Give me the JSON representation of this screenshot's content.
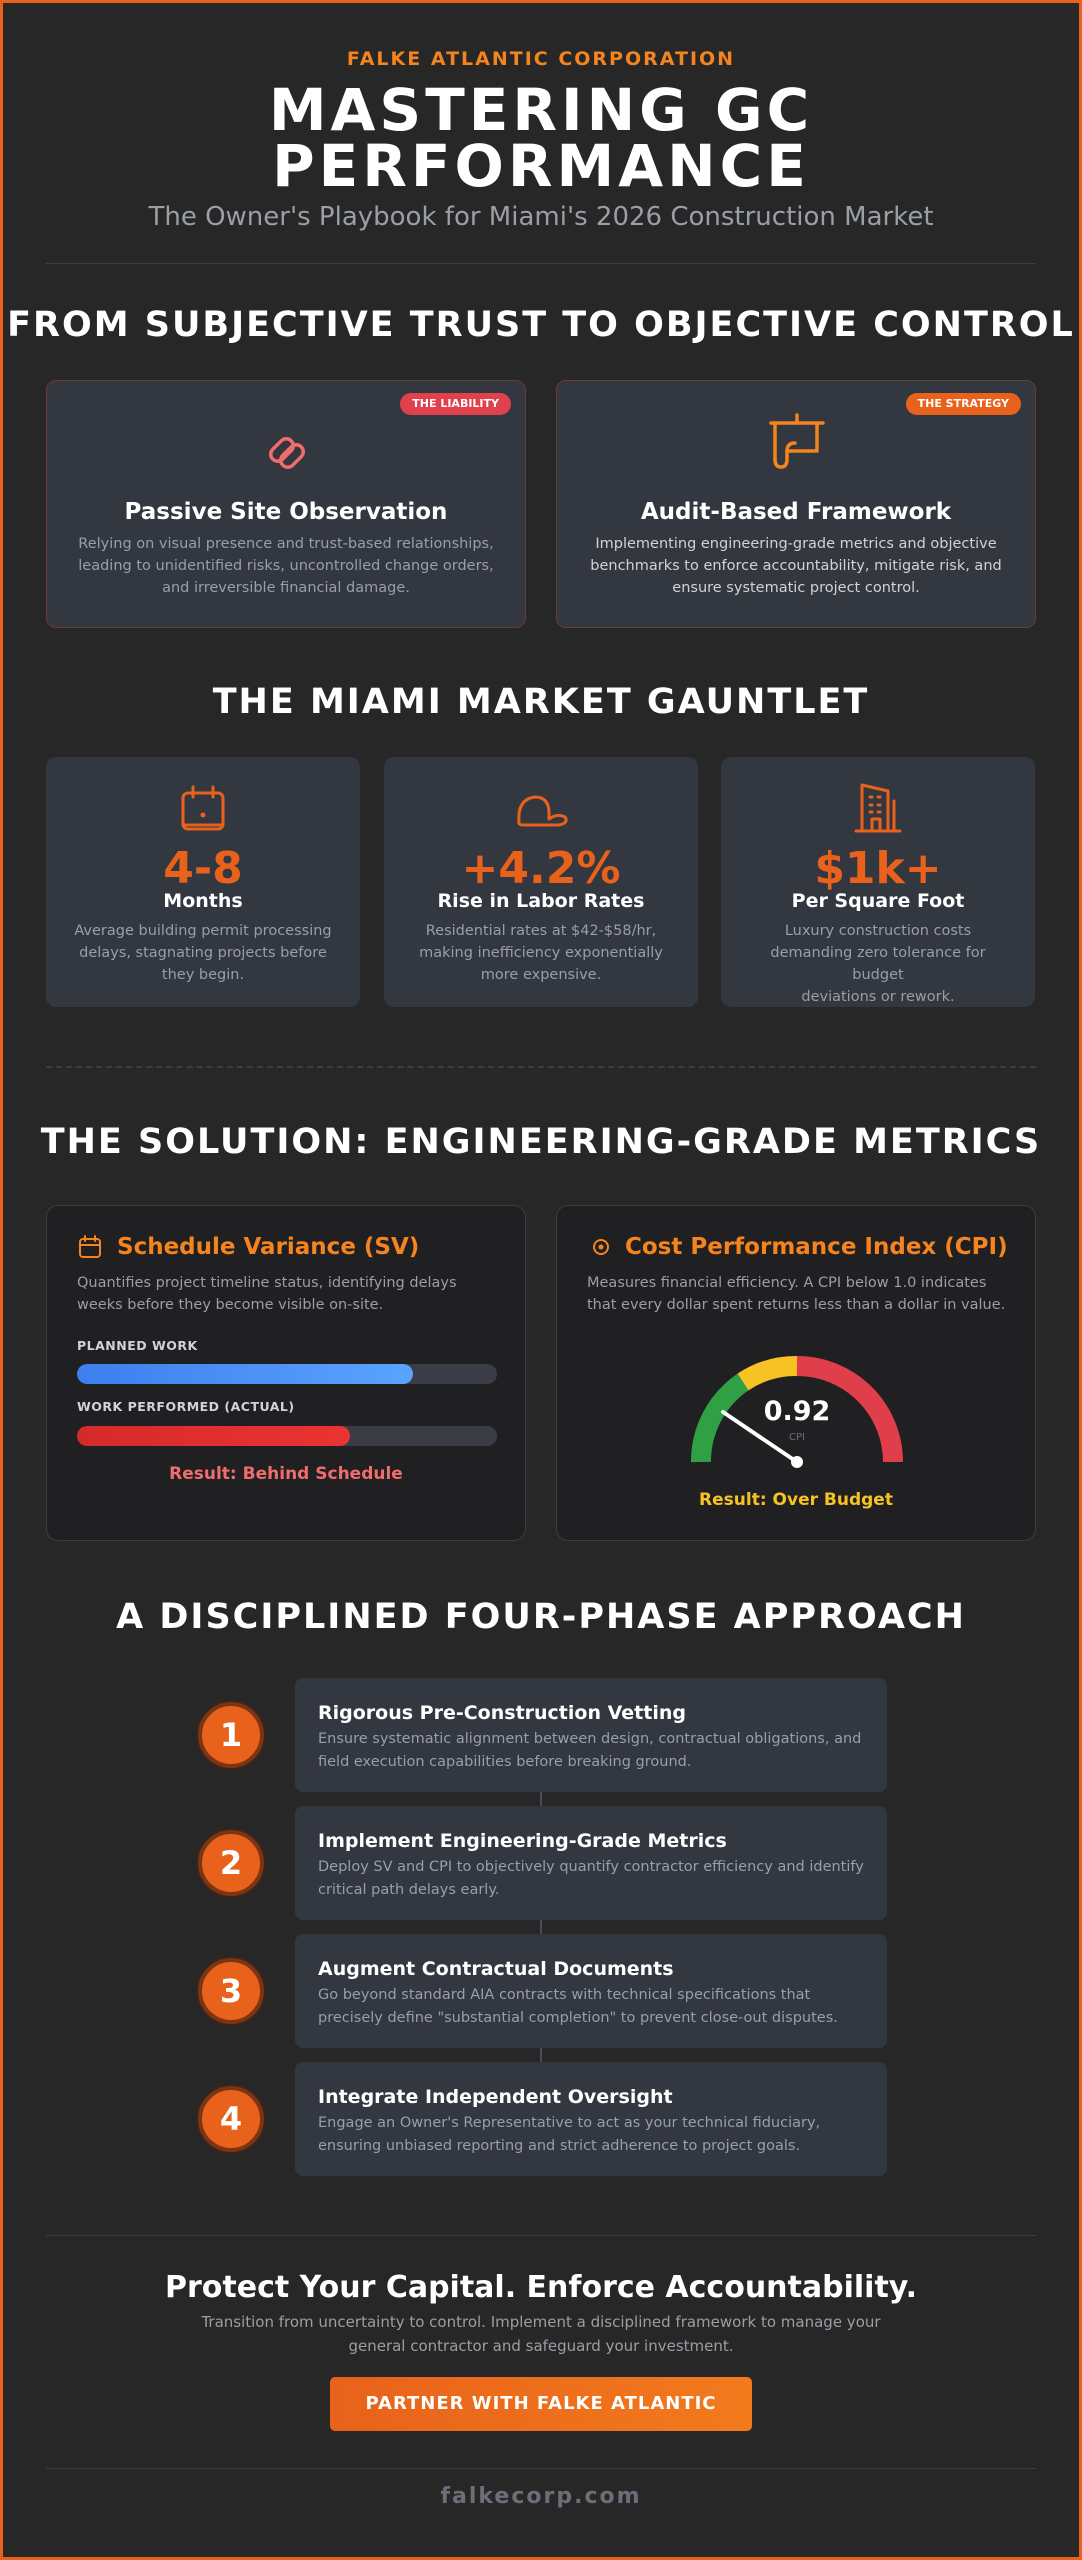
{
  "header": {
    "eyebrow": "FALKE ATLANTIC CORPORATION",
    "title_line1": "MASTERING GC",
    "title_line2": "PERFORMANCE",
    "subtitle": "The Owner's Playbook for Miami's 2026 Construction Market"
  },
  "section1": {
    "title": "FROM SUBJECTIVE TRUST TO OBJECTIVE CONTROL",
    "cards": [
      {
        "badge": "THE LIABILITY",
        "icon": "broken-link-icon",
        "title": "Passive Site Observation",
        "desc_line1": "Relying on visual presence and trust-based relationships,",
        "desc_line2": "leading to unidentified risks, uncontrolled change orders,",
        "desc_line3": "and irreversible financial damage."
      },
      {
        "badge": "THE STRATEGY",
        "icon": "blueprint-icon",
        "title": "Audit-Based Framework",
        "desc_line1": "Implementing engineering-grade metrics and objective",
        "desc_line2": "benchmarks to enforce accountability, mitigate risk, and",
        "desc_line3": "ensure systematic project control."
      }
    ]
  },
  "section2": {
    "title": "THE MIAMI MARKET GAUNTLET",
    "stats": [
      {
        "icon": "calendar-icon",
        "value": "4-8",
        "label": "Months",
        "desc_line1": "Average building permit processing",
        "desc_line2": "delays, stagnating projects before",
        "desc_line3": "they begin."
      },
      {
        "icon": "hard-hat-icon",
        "value": "+4.2%",
        "label": "Rise in Labor Rates",
        "desc_line1": "Residential rates at $42-$58/hr,",
        "desc_line2": "making inefficiency exponentially",
        "desc_line3": "more expensive."
      },
      {
        "icon": "building-icon",
        "value": "$1k+",
        "label": "Per Square Foot",
        "desc_line1": "Luxury construction costs",
        "desc_line2": "demanding zero tolerance for budget",
        "desc_line3": "deviations or rework."
      }
    ]
  },
  "section3": {
    "title": "THE SOLUTION: ENGINEERING-GRADE METRICS",
    "sv": {
      "title": "Schedule Variance (SV)",
      "desc_line1": "Quantifies project timeline status, identifying delays",
      "desc_line2": "weeks before they become visible on-site.",
      "planned_label": "PLANNED WORK",
      "planned_fraction": 0.8,
      "actual_label": "WORK PERFORMED (ACTUAL)",
      "actual_fraction": 0.65,
      "result": "Result: Behind Schedule",
      "planned_color": "#4d8ef0",
      "actual_color": "#e02b2b"
    },
    "cpi": {
      "title": "Cost Performance Index (CPI)",
      "desc_line1": "Measures financial efficiency. A CPI below 1.0 indicates",
      "desc_line2": "that every dollar spent returns less than a dollar in value.",
      "gauge_value": "0.92",
      "gauge_caption": "CPI",
      "result": "Result: Over Budget",
      "colors": {
        "green": "#2fa043",
        "yellow": "#f6c224",
        "red": "#e03e4a"
      }
    }
  },
  "section4": {
    "title": "A DISCIPLINED FOUR-PHASE APPROACH",
    "steps": [
      {
        "num": "1",
        "title": "Rigorous Pre-Construction Vetting",
        "desc_line1": "Ensure systematic alignment between design, contractual obligations, and",
        "desc_line2": "field execution capabilities before breaking ground."
      },
      {
        "num": "2",
        "title": "Implement Engineering-Grade Metrics",
        "desc_line1": "Deploy SV and CPI to objectively quantify contractor efficiency and identify",
        "desc_line2": "critical path delays early."
      },
      {
        "num": "3",
        "title": "Augment Contractual Documents",
        "desc_line1": "Go beyond standard AIA contracts with technical specifications that",
        "desc_line2": "precisely define \"substantial completion\" to prevent close-out disputes."
      },
      {
        "num": "4",
        "title": "Integrate Independent Oversight",
        "desc_line1": "Engage an Owner's Representative to act as your technical fiduciary,",
        "desc_line2": "ensuring unbiased reporting and strict adherence to project goals."
      }
    ]
  },
  "cta": {
    "title": "Protect Your Capital. Enforce Accountability.",
    "desc_line1": "Transition from uncertainty to control. Implement a disciplined framework to manage your",
    "desc_line2": "general contractor and safeguard your investment.",
    "button": "PARTNER WITH FALKE ATLANTIC"
  },
  "footer": {
    "site": "falkecorp.com"
  },
  "colors": {
    "accent": "#e8621b",
    "accent_light": "#f5841f",
    "background": "#272727",
    "card": "#333740"
  }
}
